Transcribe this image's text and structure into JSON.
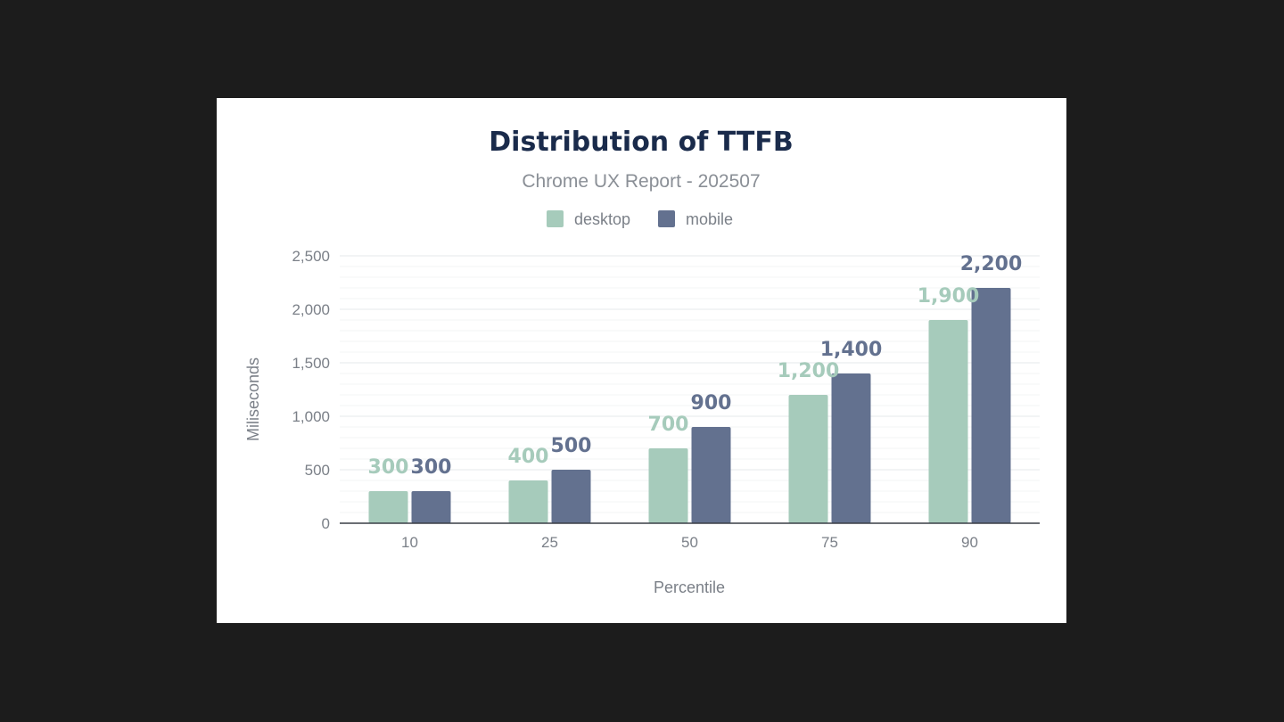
{
  "chart_data": {
    "type": "bar",
    "title": "Distribution of TTFB",
    "subtitle": "Chrome UX Report - 202507",
    "xlabel": "Percentile",
    "ylabel": "Miliseconds",
    "categories": [
      "10",
      "25",
      "50",
      "75",
      "90"
    ],
    "series": [
      {
        "name": "desktop",
        "color": "#a6cbbb",
        "values": [
          300,
          400,
          700,
          1200,
          1900
        ],
        "labels": [
          "300",
          "400",
          "700",
          "1,200",
          "1,900"
        ]
      },
      {
        "name": "mobile",
        "color": "#63718f",
        "values": [
          300,
          500,
          900,
          1400,
          2200
        ],
        "labels": [
          "300",
          "500",
          "900",
          "1,400",
          "2,200"
        ]
      }
    ],
    "ylim": [
      0,
      2500
    ],
    "yticks": [
      0,
      500,
      1000,
      1500,
      2000,
      2500
    ],
    "ytick_labels": [
      "0",
      "500",
      "1,000",
      "1,500",
      "2,000",
      "2,500"
    ],
    "grid": true,
    "legend_position": "top-center"
  }
}
